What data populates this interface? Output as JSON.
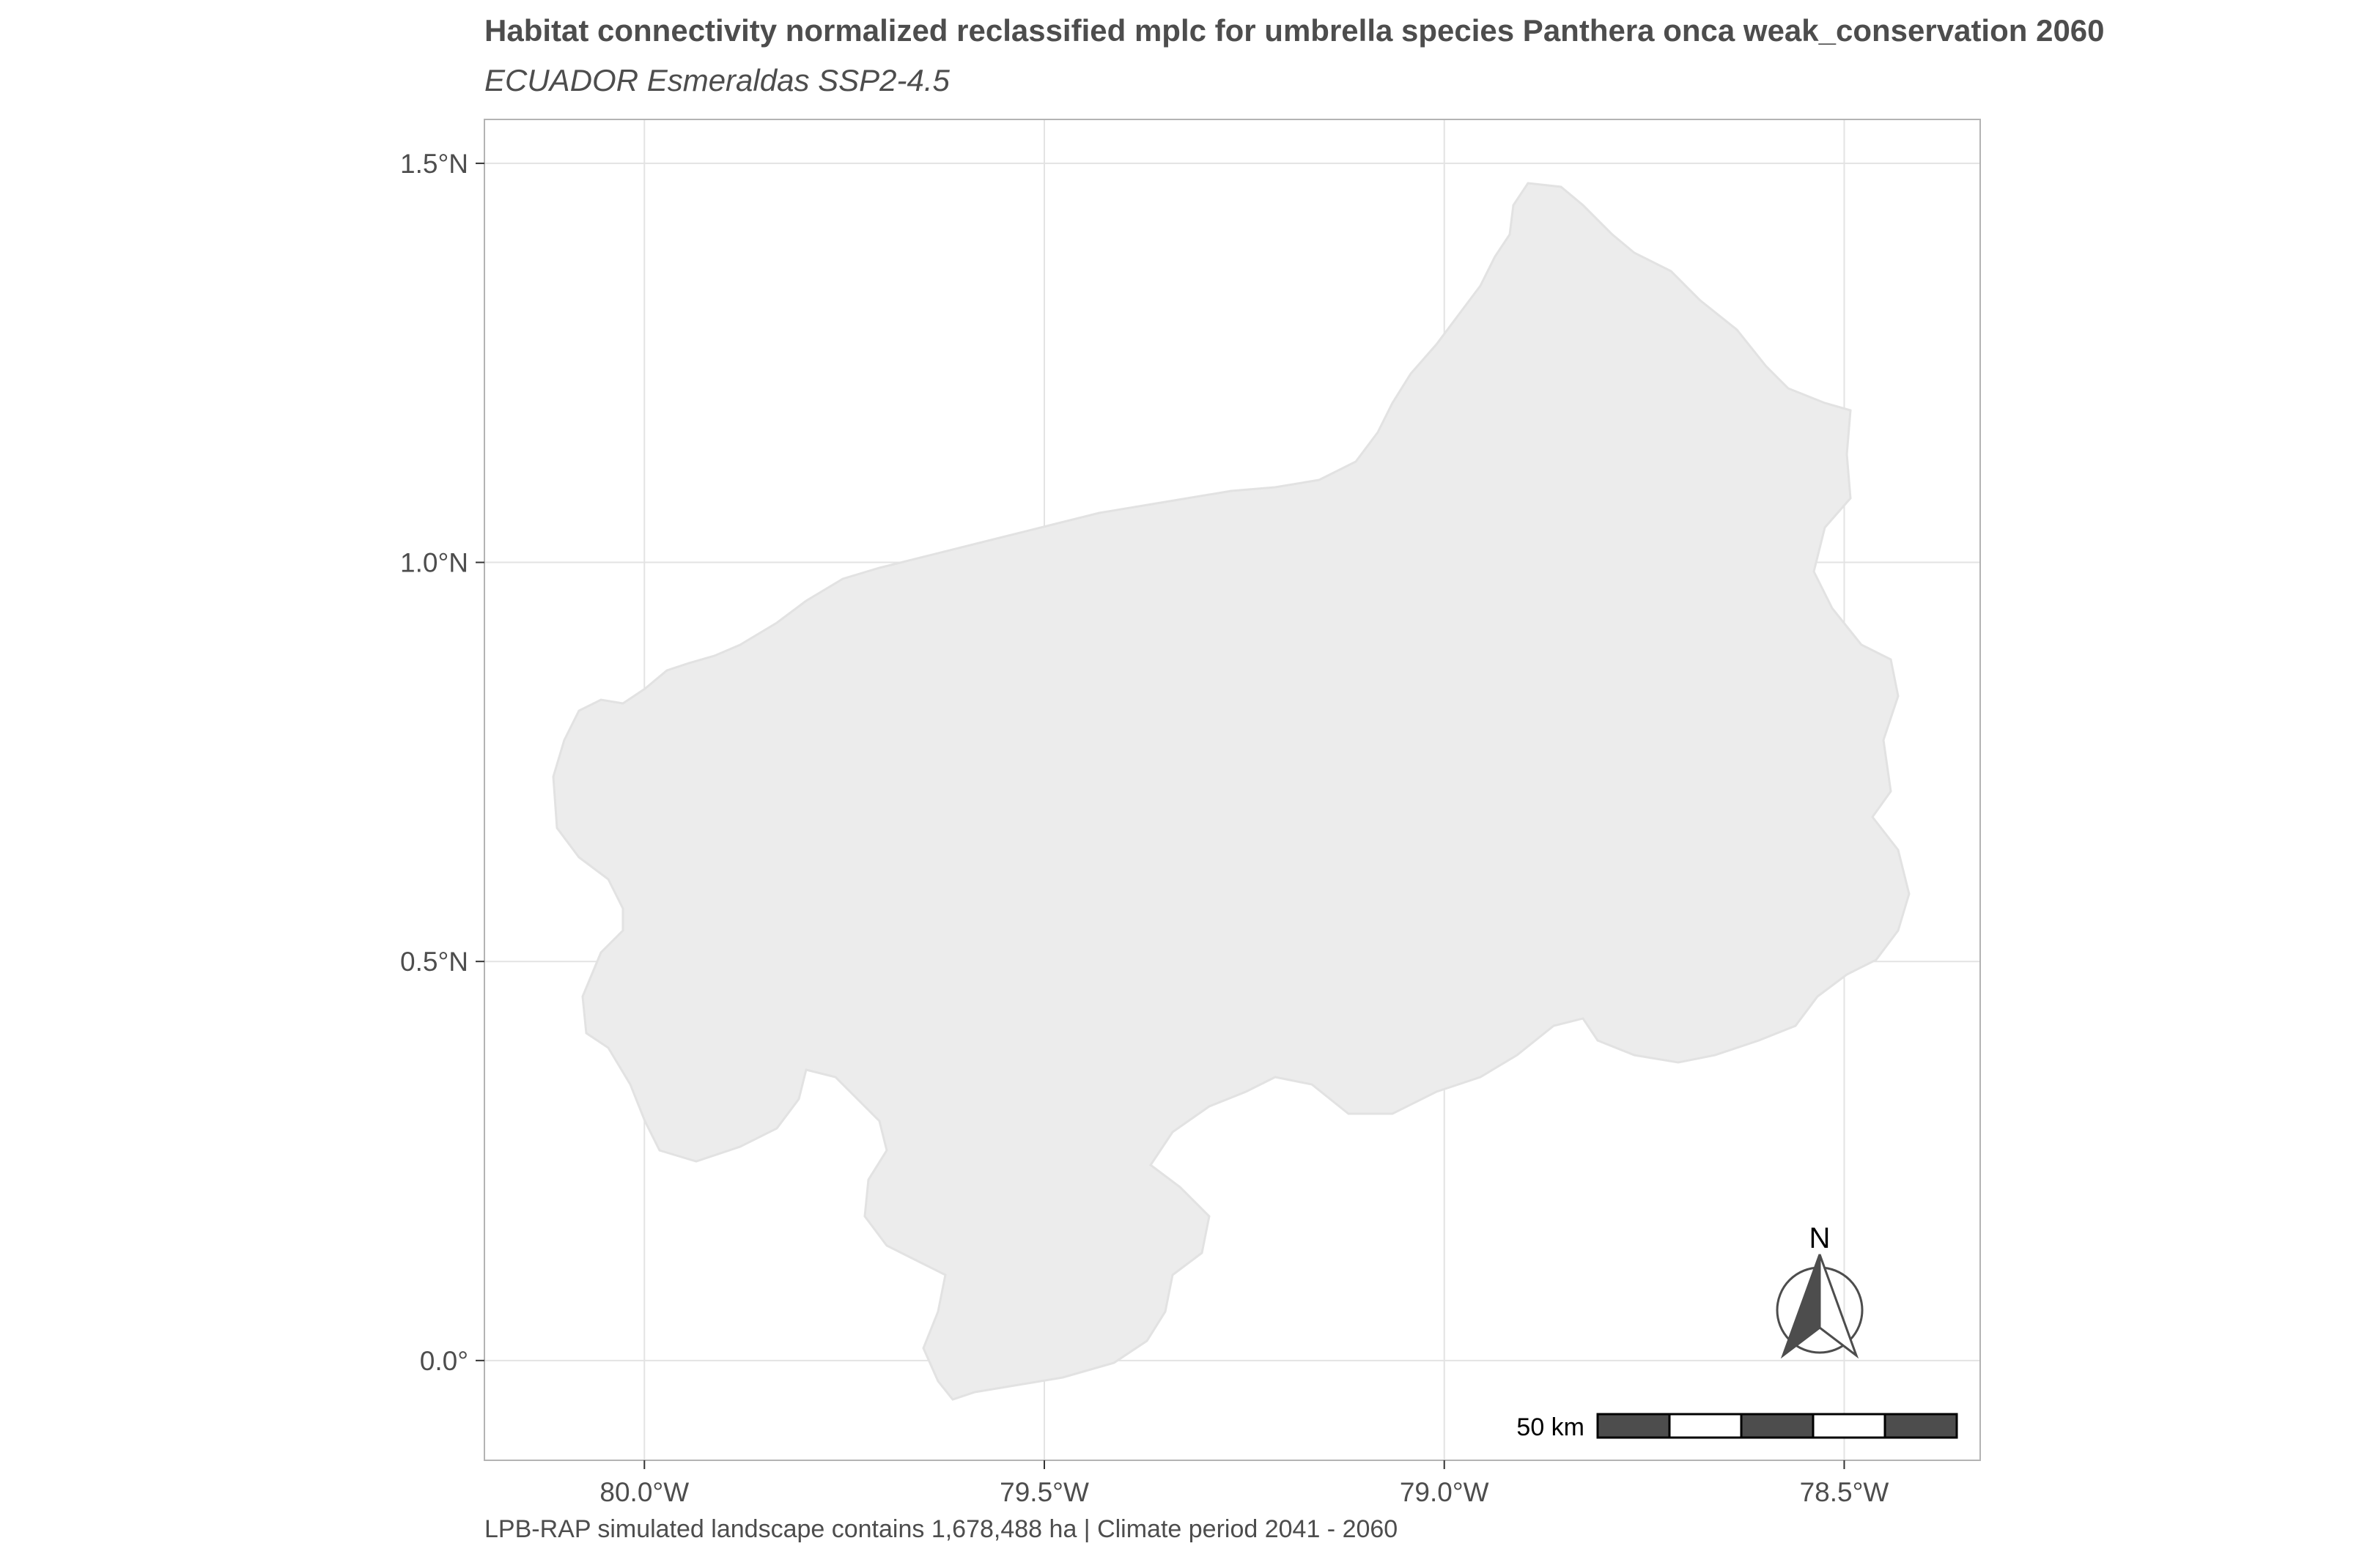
{
  "title": "Habitat connectivity normalized reclassified mplc for umbrella species Panthera onca weak_conservation 2060",
  "subtitle": "ECUADOR Esmeraldas SSP2-4.5",
  "caption": "LPB-RAP simulated landscape contains 1,678,488 ha | Climate period 2041 - 2060",
  "axes": {
    "x_ticks": [
      {
        "value": -80.0,
        "label": "80.0°W"
      },
      {
        "value": -79.5,
        "label": "79.5°W"
      },
      {
        "value": -79.0,
        "label": "79.0°W"
      },
      {
        "value": -78.5,
        "label": "78.5°W"
      }
    ],
    "y_ticks": [
      {
        "value": 1.5,
        "label": "1.5°N"
      },
      {
        "value": 1.0,
        "label": "1.0°N"
      },
      {
        "value": 0.5,
        "label": "0.5°N"
      },
      {
        "value": 0.0,
        "label": "0.0°"
      }
    ],
    "xlim": [
      -80.2,
      -78.33
    ],
    "ylim": [
      -0.125,
      1.555
    ]
  },
  "scale_bar": {
    "label": "50 km",
    "segments": 5
  },
  "north_arrow": {
    "label": "N"
  },
  "colors": {
    "panel_border": "#b3b3b3",
    "grid": "#e3e3e3",
    "landmass": "#ececec",
    "scale_dark": "#4d4d4d"
  }
}
